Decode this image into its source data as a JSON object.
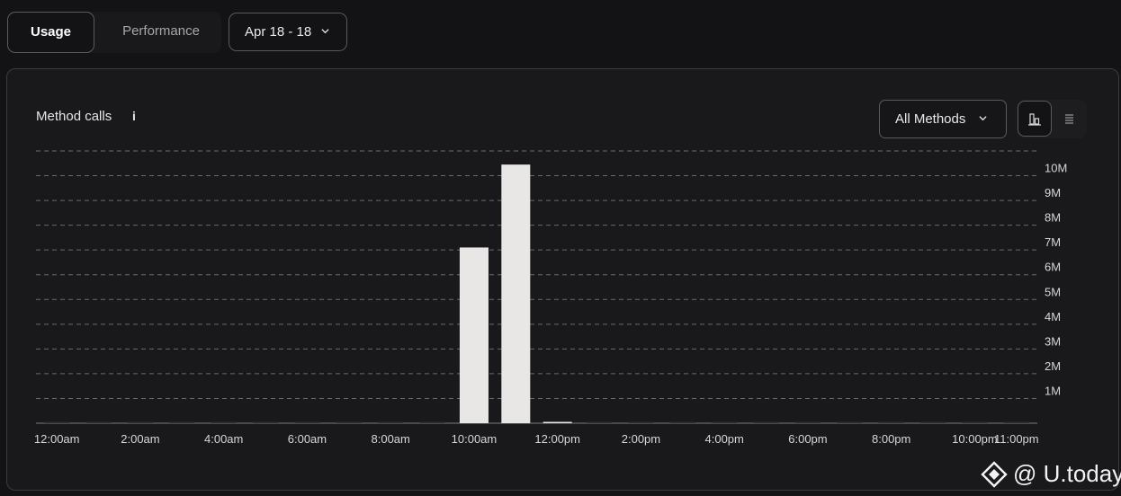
{
  "tabs": [
    {
      "label": "Usage",
      "active": true
    },
    {
      "label": "Performance",
      "active": false
    }
  ],
  "date_range": {
    "label": "Apr 18 - 18",
    "icon": "chevron-down-icon"
  },
  "panel": {
    "title": "Method calls",
    "info_glyph": "i",
    "methods_select": {
      "label": "All Methods",
      "icon": "chevron-down-icon"
    },
    "view_toggle": {
      "bar_icon": "bar-chart-icon",
      "list_icon": "list-icon",
      "active": "bar"
    }
  },
  "chart_data": {
    "type": "bar",
    "x_tick_labels": [
      "12:00am",
      "2:00am",
      "4:00am",
      "6:00am",
      "8:00am",
      "10:00am",
      "12:00pm",
      "2:00pm",
      "4:00pm",
      "6:00pm",
      "8:00pm",
      "10:00pm",
      "11:00pm"
    ],
    "y_tick_labels": [
      "1M",
      "2M",
      "3M",
      "4M",
      "5M",
      "6M",
      "7M",
      "8M",
      "9M",
      "10M"
    ],
    "ylim": [
      0,
      11000000
    ],
    "y_axis_position": "right",
    "grid": true,
    "bar_color": "#e9e7e6",
    "categories": [
      "12:00am",
      "1:00am",
      "2:00am",
      "3:00am",
      "4:00am",
      "5:00am",
      "6:00am",
      "7:00am",
      "8:00am",
      "9:00am",
      "10:00am",
      "11:00am",
      "12:00pm",
      "1:00pm",
      "2:00pm",
      "3:00pm",
      "4:00pm",
      "5:00pm",
      "6:00pm",
      "7:00pm",
      "8:00pm",
      "9:00pm",
      "10:00pm",
      "11:00pm"
    ],
    "values": [
      0,
      0,
      0,
      0,
      0,
      0,
      0,
      0,
      0,
      0,
      7100000,
      10450000,
      40000,
      0,
      0,
      0,
      0,
      0,
      0,
      0,
      0,
      0,
      0,
      0
    ]
  },
  "watermark": {
    "text": "@ U.today",
    "icon": "utoday-logo-icon"
  }
}
